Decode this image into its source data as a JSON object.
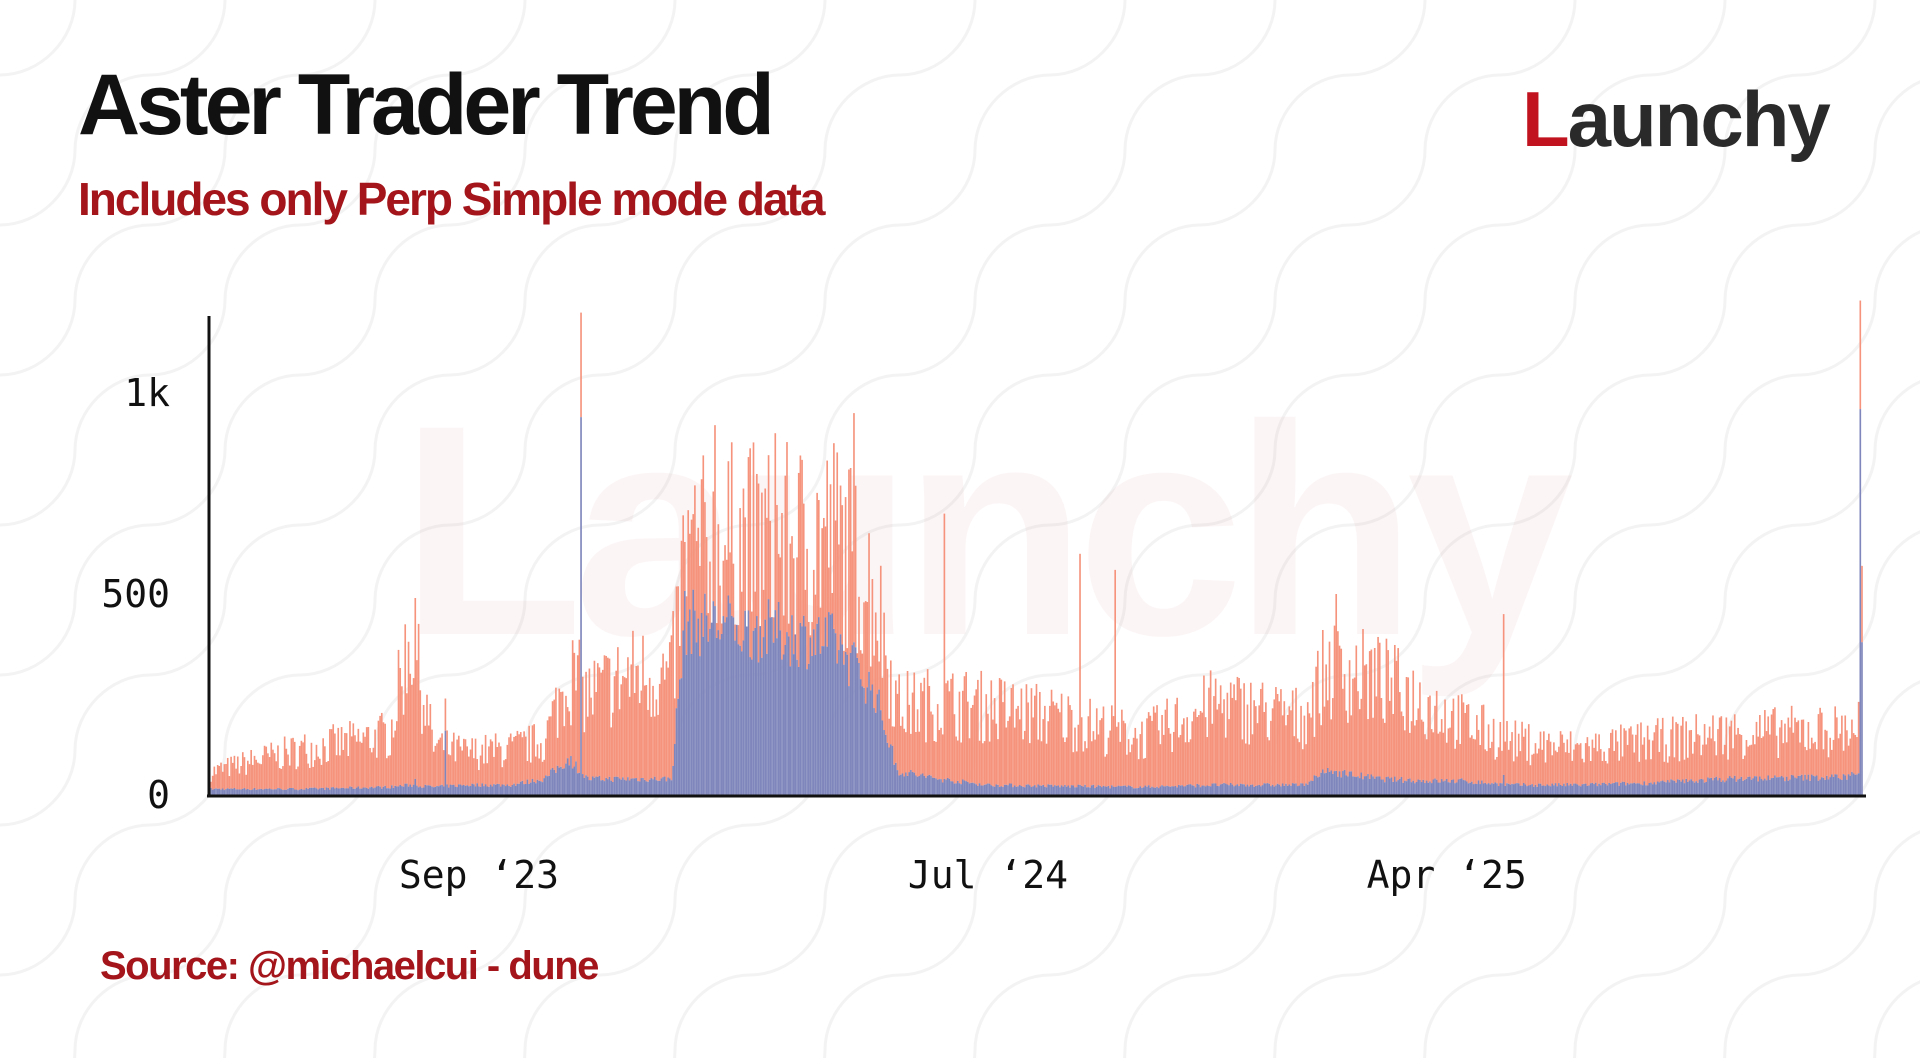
{
  "title": "Aster Trader Trend",
  "subtitle": "Includes only Perp Simple mode data",
  "source": "Source: @michaelcui - dune",
  "brand": {
    "logo_initial": "L",
    "logo_rest": "aunchy",
    "watermark": "Launchy",
    "accent_color": "#c1121f"
  },
  "chart_data": {
    "type": "bar",
    "stacked": true,
    "title": "Aster Trader Trend",
    "subtitle": "Includes only Perp Simple mode data",
    "y_ticks": [
      {
        "value": 0,
        "label": "0"
      },
      {
        "value": 500,
        "label": "500"
      },
      {
        "value": 1000,
        "label": "1k"
      }
    ],
    "x_ticks": [
      {
        "date": "2023-09-01",
        "label": "Sep ‘23"
      },
      {
        "date": "2024-07-01",
        "label": "Jul ‘24"
      },
      {
        "date": "2025-04-01",
        "label": "Apr ‘25"
      }
    ],
    "xlim": [
      "2023-03-25",
      "2025-12-05"
    ],
    "ylim": [
      0,
      1200
    ],
    "legend": "none",
    "grid": false,
    "series_colors": [
      "#7f86bb",
      "#f5937c"
    ],
    "trend_points": [
      {
        "date": "2023-03-25",
        "lower": 15,
        "total": 60
      },
      {
        "date": "2023-04-20",
        "lower": 15,
        "total": 90
      },
      {
        "date": "2023-05-20",
        "lower": 15,
        "total": 120
      },
      {
        "date": "2023-06-20",
        "lower": 18,
        "total": 140
      },
      {
        "date": "2023-07-10",
        "lower": 20,
        "total": 160
      },
      {
        "date": "2023-07-22",
        "lower": 25,
        "total": 420
      },
      {
        "date": "2023-08-05",
        "lower": 20,
        "total": 130
      },
      {
        "date": "2023-08-25",
        "lower": 25,
        "total": 110
      },
      {
        "date": "2023-09-20",
        "lower": 25,
        "total": 120
      },
      {
        "date": "2023-10-10",
        "lower": 40,
        "total": 140
      },
      {
        "date": "2023-10-25",
        "lower": 90,
        "total": 320
      },
      {
        "date": "2023-11-05",
        "lower": 40,
        "total": 260
      },
      {
        "date": "2023-12-05",
        "lower": 40,
        "total": 320
      },
      {
        "date": "2023-12-25",
        "lower": 40,
        "total": 300
      },
      {
        "date": "2024-01-02",
        "lower": 430,
        "total": 620
      },
      {
        "date": "2024-02-01",
        "lower": 420,
        "total": 660
      },
      {
        "date": "2024-03-01",
        "lower": 400,
        "total": 650
      },
      {
        "date": "2024-04-01",
        "lower": 380,
        "total": 680
      },
      {
        "date": "2024-04-25",
        "lower": 250,
        "total": 520
      },
      {
        "date": "2024-05-08",
        "lower": 60,
        "total": 230
      },
      {
        "date": "2024-06-01",
        "lower": 40,
        "total": 240
      },
      {
        "date": "2024-07-01",
        "lower": 25,
        "total": 230
      },
      {
        "date": "2024-08-15",
        "lower": 22,
        "total": 200
      },
      {
        "date": "2024-10-01",
        "lower": 20,
        "total": 150
      },
      {
        "date": "2024-11-15",
        "lower": 25,
        "total": 240
      },
      {
        "date": "2025-01-05",
        "lower": 25,
        "total": 200
      },
      {
        "date": "2025-01-20",
        "lower": 60,
        "total": 330
      },
      {
        "date": "2025-02-20",
        "lower": 40,
        "total": 300
      },
      {
        "date": "2025-03-20",
        "lower": 35,
        "total": 240
      },
      {
        "date": "2025-04-10",
        "lower": 35,
        "total": 190
      },
      {
        "date": "2025-05-10",
        "lower": 25,
        "total": 140
      },
      {
        "date": "2025-06-20",
        "lower": 25,
        "total": 120
      },
      {
        "date": "2025-08-01",
        "lower": 30,
        "total": 140
      },
      {
        "date": "2025-09-15",
        "lower": 40,
        "total": 160
      },
      {
        "date": "2025-11-25",
        "lower": 45,
        "total": 170
      },
      {
        "date": "2025-12-05",
        "lower": 60,
        "total": 190
      }
    ],
    "spikes": [
      {
        "date": "2023-07-25",
        "lower": 40,
        "total": 490
      },
      {
        "date": "2023-08-12",
        "lower": 160,
        "total": 240
      },
      {
        "date": "2023-11-01",
        "lower": 940,
        "total": 1200
      },
      {
        "date": "2024-01-20",
        "lower": 470,
        "total": 920
      },
      {
        "date": "2024-02-25",
        "lower": 460,
        "total": 900
      },
      {
        "date": "2024-04-12",
        "lower": 380,
        "total": 950
      },
      {
        "date": "2024-06-05",
        "lower": 40,
        "total": 700
      },
      {
        "date": "2024-08-25",
        "lower": 25,
        "total": 600
      },
      {
        "date": "2024-09-15",
        "lower": 20,
        "total": 560
      },
      {
        "date": "2025-01-25",
        "lower": 60,
        "total": 500
      },
      {
        "date": "2025-05-05",
        "lower": 50,
        "total": 450
      },
      {
        "date": "2025-12-04",
        "lower": 960,
        "total": 1230
      },
      {
        "date": "2025-12-05",
        "lower": 380,
        "total": 570
      }
    ]
  }
}
